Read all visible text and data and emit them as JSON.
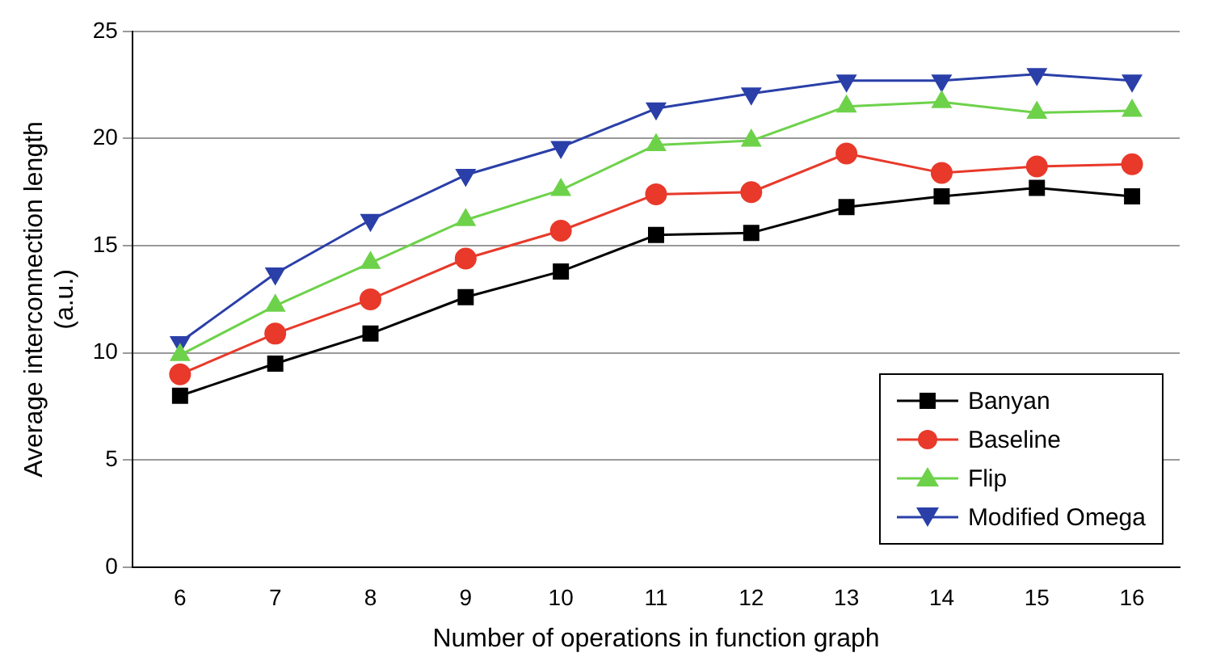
{
  "chart_data": {
    "type": "line",
    "xlabel": "Number of operations in function graph",
    "ylabel": "Average interconnection length\n(a.u.)",
    "x": [
      6,
      7,
      8,
      9,
      10,
      11,
      12,
      13,
      14,
      15,
      16
    ],
    "xlim": [
      5.5,
      16.5
    ],
    "xticks": [
      6,
      7,
      8,
      9,
      10,
      11,
      12,
      13,
      14,
      15,
      16
    ],
    "ylim": [
      0,
      25
    ],
    "yticks": [
      0,
      5,
      10,
      15,
      20,
      25
    ],
    "grid": "y",
    "legend": "bottom right",
    "series": [
      {
        "name": "Banyan",
        "color": "#000000",
        "marker": "square",
        "values": [
          8.0,
          9.5,
          10.9,
          12.6,
          13.8,
          15.5,
          15.6,
          16.8,
          17.3,
          17.7,
          17.3
        ]
      },
      {
        "name": "Baseline",
        "color": "#e8392a",
        "marker": "circle",
        "values": [
          9.0,
          10.9,
          12.5,
          14.4,
          15.7,
          17.4,
          17.5,
          19.3,
          18.4,
          18.7,
          18.8
        ]
      },
      {
        "name": "Flip",
        "color": "#6dd24a",
        "marker": "triangle",
        "values": [
          9.9,
          12.2,
          14.2,
          16.2,
          17.6,
          19.7,
          19.9,
          21.5,
          21.7,
          21.2,
          21.3
        ]
      },
      {
        "name": "Modified Omega",
        "color": "#2a3fa8",
        "marker": "triangle-down",
        "values": [
          10.5,
          13.7,
          16.2,
          18.3,
          19.6,
          21.4,
          22.1,
          22.7,
          22.7,
          23.0,
          22.7
        ]
      }
    ]
  }
}
